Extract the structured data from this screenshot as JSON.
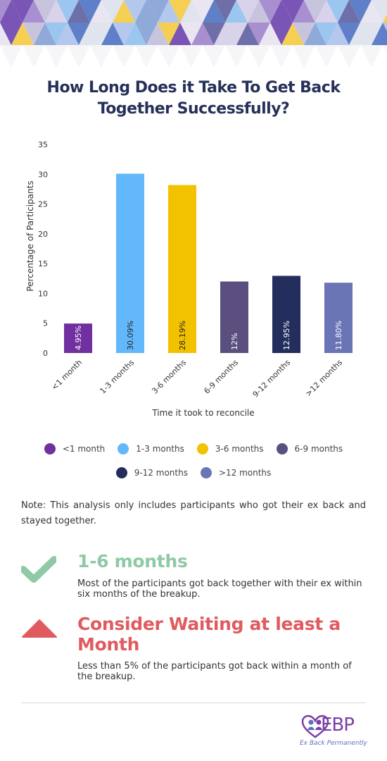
{
  "title": "How Long Does  it Take To Get Back Together Successfully?",
  "chart_data": {
    "type": "bar",
    "categories": [
      "<1 month",
      "1-3 months",
      "3-6 months",
      "6-9 months",
      "9-12 months",
      ">12 months"
    ],
    "values": [
      4.95,
      30.09,
      28.19,
      12,
      12.95,
      11.8
    ],
    "bar_labels": [
      "4.95%",
      "30.09%",
      "28.19%",
      "12%",
      "12.95%",
      "11.80%"
    ],
    "colors": [
      "#7030a0",
      "#63b8fb",
      "#f2c200",
      "#5a4f7f",
      "#232e5d",
      "#6a75b6"
    ],
    "xlabel": "Time it took to reconcile",
    "ylabel": "Percentage of Participants",
    "ylim": [
      0,
      35
    ],
    "yticks": [
      0,
      5,
      10,
      15,
      20,
      25,
      30,
      35
    ],
    "grid": false,
    "legend_position": "bottom"
  },
  "legend": {
    "items": [
      {
        "label": "<1 month",
        "color": "#7030a0"
      },
      {
        "label": "1-3 months",
        "color": "#63b8fb"
      },
      {
        "label": "3-6 months",
        "color": "#f2c200"
      },
      {
        "label": "6-9 months",
        "color": "#5a4f7f"
      },
      {
        "label": "9-12 months",
        "color": "#232e5d"
      },
      {
        "label": ">12 months",
        "color": "#6a75b6"
      }
    ]
  },
  "note": "Note: This analysis only includes participants who got their ex back and stayed together.",
  "callouts": [
    {
      "icon": "checkmark-icon",
      "heading": "1-6 months",
      "body": "Most of the participants got back together with their ex within six months of the breakup.",
      "color": "#8fc9a6"
    },
    {
      "icon": "warning-triangle-icon",
      "heading": "Consider Waiting at least a Month",
      "body": "Less than 5% of the participants got back within a month of the breakup.",
      "color": "#e05b5f"
    }
  ],
  "logo": {
    "letters": "EBP",
    "tagline": "Ex Back Permanently"
  }
}
